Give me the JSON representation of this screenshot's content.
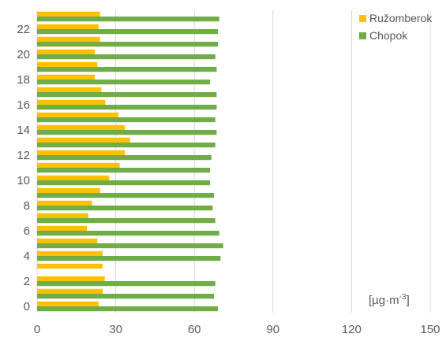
{
  "chart_data": {
    "type": "bar",
    "orientation": "horizontal",
    "categories": [
      0,
      1,
      2,
      3,
      4,
      5,
      6,
      7,
      8,
      9,
      10,
      11,
      12,
      13,
      14,
      15,
      16,
      17,
      18,
      19,
      20,
      21,
      22,
      23
    ],
    "y_tick_labels": [
      "0",
      "2",
      "4",
      "6",
      "8",
      "10",
      "12",
      "14",
      "16",
      "18",
      "20",
      "22"
    ],
    "x_tick_labels": [
      "0",
      "30",
      "60",
      "90",
      "120",
      "150"
    ],
    "xlim": [
      0,
      150
    ],
    "grid": true,
    "legend_position": "top-right",
    "unit_label": "[µg·m",
    "unit_superscript": "-3",
    "unit_close": "]",
    "series": [
      {
        "name": "Ružomberok",
        "color": "#FFC000",
        "values": [
          23.5,
          25,
          25.8,
          25,
          25,
          23,
          19,
          19.5,
          21,
          24,
          27.5,
          31.5,
          33.5,
          35.5,
          33.5,
          31,
          26,
          24.5,
          22,
          23,
          22,
          24,
          23.5,
          24
        ]
      },
      {
        "name": "Chopok",
        "color": "#70AD47",
        "values": [
          69,
          67.5,
          68,
          0,
          70,
          71,
          69.5,
          68,
          67,
          67.5,
          66,
          66,
          66.5,
          68,
          68.5,
          68,
          68.5,
          68.5,
          66,
          68.5,
          68,
          69,
          69,
          69.5
        ]
      }
    ]
  }
}
